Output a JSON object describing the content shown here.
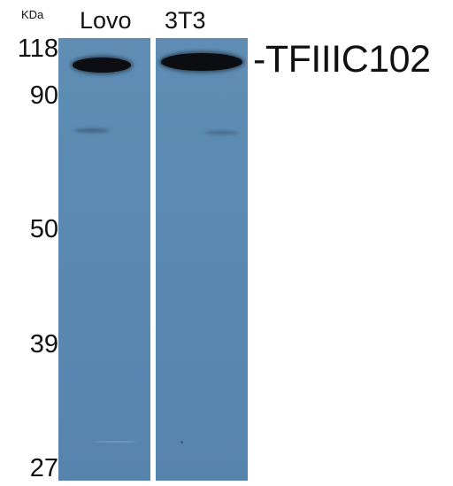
{
  "units_label": "KDa",
  "lanes": [
    {
      "label": "Lovo"
    },
    {
      "label": "3T3"
    }
  ],
  "markers": [
    "118",
    "90",
    "50",
    "39",
    "27"
  ],
  "target_label": "-TFIIIC102",
  "colors": {
    "membrane": "#5b8ab2",
    "band": "#0c0e12",
    "background": "#ffffff",
    "text": "#111111"
  }
}
